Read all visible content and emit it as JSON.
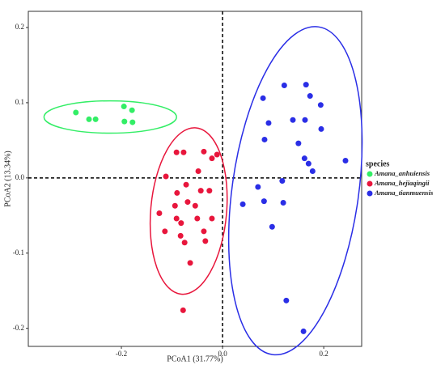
{
  "chart_data": {
    "type": "scatter",
    "x_label": "PCoA1 (31.77%)",
    "y_label": "PCoA2 (13.34%)",
    "legend_title": "species",
    "legend": "right",
    "xlim": [
      -0.384,
      0.275
    ],
    "ylim": [
      -0.224,
      0.2215
    ],
    "xticks": [
      -0.2,
      {
        "value": 0,
        "label": "0.0"
      },
      0.2
    ],
    "yticks": [
      -0.2,
      -0.1,
      {
        "value": 0,
        "label": "0.0"
      },
      0.1,
      0.2
    ],
    "series": [
      {
        "name": "Amana_anhuiensis",
        "color": "#33ee66",
        "x": [
          -0.29,
          -0.264,
          -0.251,
          -0.195,
          -0.179,
          -0.194,
          -0.178
        ],
        "values": [
          0.087,
          0.078,
          0.078,
          0.095,
          0.09,
          0.075,
          0.074
        ],
        "ellipse": {
          "cx": -0.222,
          "cy": 0.081,
          "rx": 0.131,
          "ry": 0.0215,
          "angle": 0
        }
      },
      {
        "name": "Amana_hejiaqingii",
        "color": "#e8163c",
        "x": [
          -0.091,
          -0.077,
          -0.037,
          -0.021,
          -0.011,
          -0.048,
          -0.112,
          -0.072,
          -0.09,
          -0.043,
          -0.026,
          -0.069,
          -0.094,
          -0.054,
          -0.125,
          -0.091,
          -0.05,
          -0.021,
          -0.082,
          -0.114,
          -0.037,
          -0.083,
          -0.034,
          -0.075,
          -0.064,
          -0.078
        ],
        "values": [
          0.034,
          0.034,
          0.035,
          0.026,
          0.031,
          0.009,
          0.002,
          -0.009,
          -0.02,
          -0.017,
          -0.017,
          -0.032,
          -0.037,
          -0.037,
          -0.047,
          -0.054,
          -0.054,
          -0.054,
          -0.06,
          -0.071,
          -0.071,
          -0.077,
          -0.084,
          -0.086,
          -0.113,
          -0.176
        ],
        "ellipse": {
          "cx": -0.067,
          "cy": -0.044,
          "rx": 0.075,
          "ry": 0.111,
          "angle": 5
        }
      },
      {
        "name": "Amana_tianmuensis",
        "color": "#2a2ee6",
        "x": [
          0.122,
          0.165,
          0.173,
          0.194,
          0.08,
          0.091,
          0.139,
          0.163,
          0.195,
          0.083,
          0.15,
          0.162,
          0.17,
          0.178,
          0.243,
          0.118,
          0.07,
          0.082,
          0.12,
          0.04,
          0.098,
          0.126,
          0.16
        ],
        "values": [
          0.123,
          0.124,
          0.109,
          0.097,
          0.106,
          0.073,
          0.077,
          0.077,
          0.065,
          0.051,
          0.046,
          0.026,
          0.019,
          0.009,
          0.023,
          -0.004,
          -0.012,
          -0.031,
          -0.033,
          -0.035,
          -0.065,
          -0.163,
          -0.204
        ],
        "ellipse": {
          "cx": 0.144,
          "cy": -0.017,
          "rx": 0.125,
          "ry": 0.22,
          "angle": 8
        }
      }
    ]
  }
}
